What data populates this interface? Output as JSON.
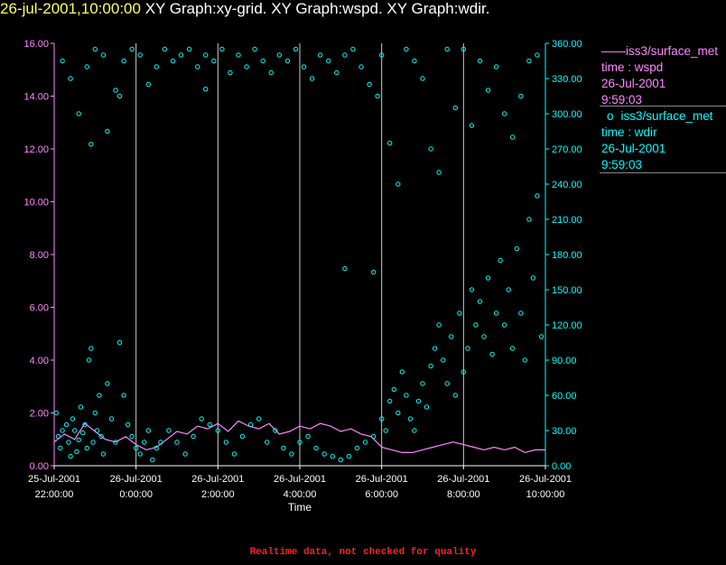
{
  "header": {
    "timestamp": "26-jul-2001,10:00:00",
    "graphs": "XY Graph:xy-grid.  XY Graph:wspd.  XY Graph:wdir."
  },
  "footer": {
    "note": "Realtime data, not checked for quality"
  },
  "legend": {
    "wspd": {
      "symbol": "——",
      "name": "iss3/surface_met",
      "line2": "time : wspd",
      "line3": "26-Jul-2001",
      "line4": "9:59:03"
    },
    "wdir": {
      "symbol": "o",
      "name": "iss3/surface_met",
      "line2": "time : wdir",
      "line3": "26-Jul-2001",
      "line4": "9:59:03"
    }
  },
  "colors": {
    "wspd": "#ff88ff",
    "wdir": "#00ffff",
    "timestamp": "#ffff55",
    "footer": "#ff2020"
  },
  "chart_data": {
    "type": "line",
    "xlabel": "Time",
    "x_ticks": [
      {
        "l1": "25-Jul-2001",
        "l2": "22:00:00",
        "hour": 0
      },
      {
        "l1": "26-Jul-2001",
        "l2": "0:00:00",
        "hour": 2
      },
      {
        "l1": "26-Jul-2001",
        "l2": "2:00:00",
        "hour": 4
      },
      {
        "l1": "26-Jul-2001",
        "l2": "4:00:00",
        "hour": 6
      },
      {
        "l1": "26-Jul-2001",
        "l2": "6:00:00",
        "hour": 8
      },
      {
        "l1": "26-Jul-2001",
        "l2": "8:00:00",
        "hour": 10
      },
      {
        "l1": "26-Jul-2001",
        "l2": "10:00:00",
        "hour": 12
      }
    ],
    "x_range_hours": [
      0,
      12
    ],
    "y_left": {
      "series": "wspd",
      "range": [
        0,
        16
      ],
      "ticks": [
        "0.00",
        "2.00",
        "4.00",
        "6.00",
        "8.00",
        "10.00",
        "12.00",
        "14.00",
        "16.00"
      ]
    },
    "y_right": {
      "series": "wdir",
      "range": [
        0,
        360
      ],
      "ticks": [
        "0.00",
        "30.00",
        "60.00",
        "90.00",
        "120.00",
        "150.00",
        "180.00",
        "210.00",
        "240.00",
        "270.00",
        "300.00",
        "330.00",
        "360.00"
      ]
    },
    "grid": "vertical at each x tick",
    "series": [
      {
        "name": "iss3/surface_met time : wspd",
        "style": "line",
        "t_hours": [
          0,
          0.25,
          0.5,
          0.75,
          1,
          1.25,
          1.5,
          1.75,
          2,
          2.25,
          2.5,
          2.75,
          3,
          3.25,
          3.5,
          3.75,
          4,
          4.25,
          4.5,
          4.75,
          5,
          5.25,
          5.5,
          5.75,
          6,
          6.25,
          6.5,
          6.75,
          7,
          7.25,
          7.5,
          7.75,
          8,
          8.25,
          8.5,
          8.75,
          9,
          9.25,
          9.5,
          9.75,
          10,
          10.25,
          10.5,
          10.75,
          11,
          11.25,
          11.5,
          11.75,
          12
        ],
        "values": [
          0.9,
          1.2,
          1.0,
          1.6,
          1.3,
          1.0,
          0.9,
          1.1,
          0.8,
          0.6,
          0.7,
          1.0,
          1.3,
          1.2,
          1.5,
          1.4,
          1.6,
          1.3,
          1.7,
          1.5,
          1.4,
          1.6,
          1.2,
          1.3,
          1.5,
          1.4,
          1.6,
          1.5,
          1.3,
          1.4,
          1.2,
          1.1,
          0.7,
          0.6,
          0.5,
          0.5,
          0.6,
          0.7,
          0.8,
          0.9,
          0.8,
          0.7,
          0.6,
          0.7,
          0.6,
          0.7,
          0.5,
          0.6,
          0.6
        ]
      },
      {
        "name": "iss3/surface_met time : wdir",
        "style": "markers",
        "points": [
          [
            0.05,
            45
          ],
          [
            0.1,
            25
          ],
          [
            0.15,
            15
          ],
          [
            0.2,
            30
          ],
          [
            0.3,
            35
          ],
          [
            0.35,
            20
          ],
          [
            0.4,
            8
          ],
          [
            0.45,
            40
          ],
          [
            0.5,
            30
          ],
          [
            0.55,
            12
          ],
          [
            0.6,
            22
          ],
          [
            0.65,
            50
          ],
          [
            0.7,
            28
          ],
          [
            0.75,
            35
          ],
          [
            0.8,
            15
          ],
          [
            0.85,
            90
          ],
          [
            0.9,
            100
          ],
          [
            0.95,
            20
          ],
          [
            1.0,
            45
          ],
          [
            1.05,
            30
          ],
          [
            1.1,
            60
          ],
          [
            1.15,
            25
          ],
          [
            1.2,
            10
          ],
          [
            1.3,
            70
          ],
          [
            1.4,
            40
          ],
          [
            1.5,
            20
          ],
          [
            1.6,
            105
          ],
          [
            1.7,
            60
          ],
          [
            1.8,
            35
          ],
          [
            1.9,
            25
          ],
          [
            2.0,
            15
          ],
          [
            2.1,
            10
          ],
          [
            2.2,
            20
          ],
          [
            2.3,
            30
          ],
          [
            2.4,
            5
          ],
          [
            2.5,
            15
          ],
          [
            2.6,
            20
          ],
          [
            2.8,
            30
          ],
          [
            3.0,
            20
          ],
          [
            3.2,
            10
          ],
          [
            3.4,
            25
          ],
          [
            3.6,
            40
          ],
          [
            3.8,
            35
          ],
          [
            4.0,
            30
          ],
          [
            4.2,
            20
          ],
          [
            4.4,
            10
          ],
          [
            4.6,
            25
          ],
          [
            4.8,
            35
          ],
          [
            5.0,
            40
          ],
          [
            5.2,
            20
          ],
          [
            5.4,
            30
          ],
          [
            5.6,
            15
          ],
          [
            5.8,
            10
          ],
          [
            6.0,
            20
          ],
          [
            6.2,
            25
          ],
          [
            6.4,
            15
          ],
          [
            6.6,
            10
          ],
          [
            6.8,
            8
          ],
          [
            7.0,
            5
          ],
          [
            7.2,
            8
          ],
          [
            7.4,
            15
          ],
          [
            7.6,
            20
          ],
          [
            7.8,
            25
          ],
          [
            8.0,
            40
          ],
          [
            8.1,
            30
          ],
          [
            8.2,
            55
          ],
          [
            8.3,
            65
          ],
          [
            8.4,
            45
          ],
          [
            8.5,
            80
          ],
          [
            8.6,
            60
          ],
          [
            8.7,
            40
          ],
          [
            8.8,
            30
          ],
          [
            8.9,
            55
          ],
          [
            9.0,
            70
          ],
          [
            9.1,
            50
          ],
          [
            9.2,
            85
          ],
          [
            9.3,
            100
          ],
          [
            9.4,
            120
          ],
          [
            9.5,
            90
          ],
          [
            9.6,
            70
          ],
          [
            9.7,
            110
          ],
          [
            9.8,
            60
          ],
          [
            9.9,
            130
          ],
          [
            10.0,
            80
          ],
          [
            10.1,
            100
          ],
          [
            10.2,
            150
          ],
          [
            10.3,
            120
          ],
          [
            10.4,
            140
          ],
          [
            10.5,
            110
          ],
          [
            10.6,
            160
          ],
          [
            10.7,
            95
          ],
          [
            10.8,
            130
          ],
          [
            10.9,
            175
          ],
          [
            11.0,
            120
          ],
          [
            11.1,
            150
          ],
          [
            11.2,
            100
          ],
          [
            11.3,
            185
          ],
          [
            11.4,
            130
          ],
          [
            11.5,
            90
          ],
          [
            11.6,
            210
          ],
          [
            11.7,
            160
          ],
          [
            11.8,
            230
          ],
          [
            11.9,
            110
          ],
          [
            0.2,
            345
          ],
          [
            0.4,
            330
          ],
          [
            0.6,
            300
          ],
          [
            0.8,
            340
          ],
          [
            1.0,
            355
          ],
          [
            1.2,
            350
          ],
          [
            1.3,
            285
          ],
          [
            1.5,
            320
          ],
          [
            1.7,
            345
          ],
          [
            1.9,
            355
          ],
          [
            2.1,
            350
          ],
          [
            2.3,
            325
          ],
          [
            2.5,
            340
          ],
          [
            2.7,
            355
          ],
          [
            2.9,
            345
          ],
          [
            3.1,
            350
          ],
          [
            3.3,
            355
          ],
          [
            3.5,
            340
          ],
          [
            3.7,
            350
          ],
          [
            3.9,
            345
          ],
          [
            4.1,
            355
          ],
          [
            4.3,
            335
          ],
          [
            4.5,
            350
          ],
          [
            4.7,
            340
          ],
          [
            4.9,
            355
          ],
          [
            5.1,
            345
          ],
          [
            5.3,
            335
          ],
          [
            5.5,
            350
          ],
          [
            5.7,
            345
          ],
          [
            5.9,
            355
          ],
          [
            6.1,
            340
          ],
          [
            6.3,
            330
          ],
          [
            6.5,
            350
          ],
          [
            6.7,
            345
          ],
          [
            6.9,
            335
          ],
          [
            7.1,
            350
          ],
          [
            7.3,
            355
          ],
          [
            7.5,
            340
          ],
          [
            7.7,
            325
          ],
          [
            7.9,
            315
          ],
          [
            8.0,
            350
          ],
          [
            8.2,
            275
          ],
          [
            8.4,
            240
          ],
          [
            8.6,
            355
          ],
          [
            8.8,
            345
          ],
          [
            9.0,
            330
          ],
          [
            9.2,
            270
          ],
          [
            9.4,
            250
          ],
          [
            9.6,
            355
          ],
          [
            9.8,
            305
          ],
          [
            10.0,
            355
          ],
          [
            10.2,
            290
          ],
          [
            10.4,
            345
          ],
          [
            10.6,
            320
          ],
          [
            10.8,
            340
          ],
          [
            11.0,
            300
          ],
          [
            11.2,
            280
          ],
          [
            11.4,
            315
          ],
          [
            11.6,
            345
          ],
          [
            11.8,
            350
          ],
          [
            1.6,
            315
          ],
          [
            7.8,
            165
          ],
          [
            7.1,
            168
          ],
          [
            0.9,
            274
          ],
          [
            3.7,
            321
          ]
        ]
      }
    ]
  }
}
